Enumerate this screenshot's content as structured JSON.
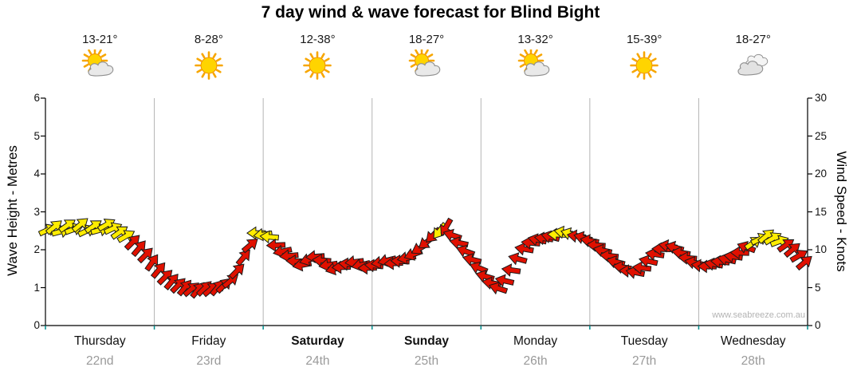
{
  "title": "7 day wind & wave forecast for Blind Bight",
  "watermark": "www.seabreeze.com.au",
  "axes": {
    "left_label": "Wave Height - Metres",
    "right_label": "Wind Speed - Knots",
    "left_ticks": [
      0,
      1,
      2,
      3,
      4,
      5,
      6
    ],
    "right_ticks": [
      0,
      5,
      10,
      15,
      20,
      25,
      30
    ]
  },
  "days": [
    {
      "name": "Thursday",
      "date": "22nd",
      "temp": "13-21°",
      "icon": "partly-cloudy",
      "bold": false
    },
    {
      "name": "Friday",
      "date": "23rd",
      "temp": "8-28°",
      "icon": "sunny",
      "bold": false
    },
    {
      "name": "Saturday",
      "date": "24th",
      "temp": "12-38°",
      "icon": "sunny",
      "bold": true
    },
    {
      "name": "Sunday",
      "date": "25th",
      "temp": "18-27°",
      "icon": "partly-cloudy",
      "bold": true
    },
    {
      "name": "Monday",
      "date": "26th",
      "temp": "13-32°",
      "icon": "partly-cloudy",
      "bold": false
    },
    {
      "name": "Tuesday",
      "date": "27th",
      "temp": "15-39°",
      "icon": "sunny",
      "bold": false
    },
    {
      "name": "Wednesday",
      "date": "28th",
      "temp": "18-27°",
      "icon": "cloudy",
      "bold": false
    }
  ],
  "chart_data": {
    "type": "line",
    "subtype": "wind-direction-arrows",
    "title": "7 day wind & wave forecast for Blind Bight",
    "ylabel_left": "Wave Height - Metres",
    "ylabel_right": "Wind Speed - Knots",
    "ylim_left_metres": [
      0,
      6
    ],
    "ylim_right_knots": [
      0,
      30
    ],
    "grid": "vertical-day-boundaries",
    "x_categories": [
      "Thursday 22nd",
      "Friday 23rd",
      "Saturday 24th",
      "Sunday 25th",
      "Monday 26th",
      "Tuesday 27th",
      "Wednesday 28th"
    ],
    "series_name": "Wind speed (knots) with direction arrows",
    "colors": {
      "y": "#ffec00",
      "r": "#e01000",
      "outline": "#1a1a1a",
      "grid": "#b4b4b4",
      "axis": "#000000",
      "bottom_tick": "#008c8c"
    },
    "point_format": [
      "day_offset",
      "wind_speed_knots",
      "arrow_rotation_deg",
      "color_key"
    ],
    "points": [
      [
        0.02,
        12.6,
        -25,
        "y"
      ],
      [
        0.08,
        13.0,
        -40,
        "y"
      ],
      [
        0.14,
        12.4,
        -15,
        "y"
      ],
      [
        0.2,
        13.2,
        -35,
        "y"
      ],
      [
        0.26,
        12.7,
        -20,
        "y"
      ],
      [
        0.32,
        13.3,
        -40,
        "y"
      ],
      [
        0.38,
        12.5,
        -25,
        "y"
      ],
      [
        0.44,
        13.1,
        -35,
        "y"
      ],
      [
        0.5,
        12.6,
        -15,
        "y"
      ],
      [
        0.56,
        13.3,
        -30,
        "y"
      ],
      [
        0.62,
        12.8,
        -25,
        "y"
      ],
      [
        0.68,
        12.3,
        -35,
        "y"
      ],
      [
        0.74,
        11.8,
        -30,
        "y"
      ],
      [
        0.8,
        11.0,
        -45,
        "r"
      ],
      [
        0.86,
        10.2,
        -50,
        "r"
      ],
      [
        0.92,
        9.3,
        -45,
        "r"
      ],
      [
        0.98,
        8.3,
        -55,
        "r"
      ],
      [
        1.04,
        7.3,
        -50,
        "r"
      ],
      [
        1.1,
        6.4,
        -45,
        "r"
      ],
      [
        1.16,
        5.8,
        -50,
        "r"
      ],
      [
        1.22,
        5.3,
        -45,
        "r"
      ],
      [
        1.28,
        5.0,
        -50,
        "r"
      ],
      [
        1.34,
        4.8,
        -40,
        "r"
      ],
      [
        1.4,
        4.7,
        -50,
        "r"
      ],
      [
        1.46,
        4.9,
        -45,
        "r"
      ],
      [
        1.52,
        4.8,
        -40,
        "r"
      ],
      [
        1.58,
        5.0,
        -50,
        "r"
      ],
      [
        1.64,
        5.3,
        -45,
        "r"
      ],
      [
        1.7,
        5.9,
        -40,
        "r"
      ],
      [
        1.76,
        7.2,
        -45,
        "r"
      ],
      [
        1.82,
        9.0,
        -50,
        "r"
      ],
      [
        1.88,
        10.6,
        -40,
        "r"
      ],
      [
        1.94,
        12.2,
        180,
        "y"
      ],
      [
        2.0,
        12.0,
        172,
        "y"
      ],
      [
        2.06,
        11.7,
        185,
        "y"
      ],
      [
        2.12,
        10.6,
        178,
        "r"
      ],
      [
        2.18,
        9.8,
        168,
        "r"
      ],
      [
        2.24,
        9.2,
        175,
        "r"
      ],
      [
        2.3,
        8.5,
        182,
        "r"
      ],
      [
        2.36,
        8.0,
        170,
        "r"
      ],
      [
        2.42,
        8.7,
        163,
        "r"
      ],
      [
        2.48,
        9.1,
        176,
        "r"
      ],
      [
        2.54,
        8.6,
        184,
        "r"
      ],
      [
        2.6,
        8.0,
        171,
        "r"
      ],
      [
        2.66,
        7.5,
        165,
        "r"
      ],
      [
        2.72,
        7.7,
        178,
        "r"
      ],
      [
        2.78,
        8.1,
        186,
        "r"
      ],
      [
        2.84,
        8.4,
        173,
        "r"
      ],
      [
        2.9,
        8.0,
        167,
        "r"
      ],
      [
        2.96,
        7.6,
        179,
        "r"
      ],
      [
        3.02,
        7.9,
        185,
        "r"
      ],
      [
        3.08,
        8.3,
        172,
        "r"
      ],
      [
        3.14,
        8.6,
        166,
        "r"
      ],
      [
        3.2,
        8.2,
        177,
        "r"
      ],
      [
        3.26,
        8.5,
        183,
        "r"
      ],
      [
        3.32,
        8.9,
        170,
        "r"
      ],
      [
        3.38,
        9.4,
        160,
        "r"
      ],
      [
        3.44,
        10.2,
        150,
        "r"
      ],
      [
        3.5,
        11.0,
        142,
        "r"
      ],
      [
        3.56,
        11.9,
        135,
        "r"
      ],
      [
        3.62,
        12.5,
        128,
        "y"
      ],
      [
        3.68,
        13.0,
        120,
        "r"
      ],
      [
        3.74,
        11.9,
        198,
        "r"
      ],
      [
        3.8,
        10.9,
        192,
        "r"
      ],
      [
        3.86,
        9.8,
        200,
        "r"
      ],
      [
        3.92,
        8.7,
        194,
        "r"
      ],
      [
        3.98,
        7.6,
        202,
        "r"
      ],
      [
        4.04,
        6.5,
        196,
        "r"
      ],
      [
        4.1,
        5.6,
        190,
        "r"
      ],
      [
        4.16,
        4.9,
        198,
        "r"
      ],
      [
        4.22,
        5.9,
        193,
        "r"
      ],
      [
        4.28,
        7.3,
        188,
        "r"
      ],
      [
        4.34,
        8.8,
        195,
        "r"
      ],
      [
        4.4,
        10.1,
        190,
        "r"
      ],
      [
        4.46,
        10.9,
        185,
        "r"
      ],
      [
        4.52,
        11.3,
        192,
        "r"
      ],
      [
        4.58,
        11.5,
        187,
        "r"
      ],
      [
        4.64,
        11.7,
        194,
        "r"
      ],
      [
        4.7,
        12.0,
        182,
        "y"
      ],
      [
        4.76,
        12.3,
        190,
        "y"
      ],
      [
        4.82,
        12.1,
        197,
        "y"
      ],
      [
        4.88,
        11.8,
        188,
        "r"
      ],
      [
        4.94,
        11.6,
        195,
        "r"
      ],
      [
        5.0,
        11.2,
        190,
        "r"
      ],
      [
        5.06,
        10.6,
        184,
        "r"
      ],
      [
        5.12,
        9.9,
        192,
        "r"
      ],
      [
        5.18,
        9.2,
        186,
        "r"
      ],
      [
        5.24,
        8.4,
        194,
        "r"
      ],
      [
        5.3,
        7.7,
        189,
        "r"
      ],
      [
        5.36,
        7.2,
        183,
        "r"
      ],
      [
        5.42,
        7.0,
        191,
        "r"
      ],
      [
        5.48,
        7.6,
        186,
        "r"
      ],
      [
        5.54,
        8.5,
        193,
        "r"
      ],
      [
        5.6,
        9.4,
        188,
        "r"
      ],
      [
        5.66,
        10.1,
        182,
        "r"
      ],
      [
        5.72,
        10.5,
        190,
        "r"
      ],
      [
        5.78,
        10.3,
        195,
        "r"
      ],
      [
        5.84,
        9.6,
        189,
        "r"
      ],
      [
        5.9,
        8.9,
        184,
        "r"
      ],
      [
        5.96,
        8.3,
        192,
        "r"
      ],
      [
        6.02,
        7.9,
        187,
        "r"
      ],
      [
        6.08,
        7.8,
        181,
        "r"
      ],
      [
        6.14,
        8.1,
        190,
        "r"
      ],
      [
        6.2,
        8.4,
        185,
        "r"
      ],
      [
        6.26,
        8.7,
        193,
        "r"
      ],
      [
        6.32,
        9.1,
        188,
        "r"
      ],
      [
        6.38,
        9.6,
        182,
        "r"
      ],
      [
        6.44,
        10.3,
        200,
        "r"
      ],
      [
        6.5,
        10.9,
        -35,
        "y"
      ],
      [
        6.56,
        11.4,
        -25,
        "y"
      ],
      [
        6.62,
        11.8,
        -40,
        "y"
      ],
      [
        6.68,
        11.5,
        -30,
        "y"
      ],
      [
        6.74,
        11.1,
        -20,
        "y"
      ],
      [
        6.8,
        10.6,
        -35,
        "r"
      ],
      [
        6.86,
        10.0,
        -40,
        "r"
      ],
      [
        6.92,
        9.2,
        -30,
        "r"
      ],
      [
        6.97,
        8.3,
        -40,
        "r"
      ]
    ]
  }
}
